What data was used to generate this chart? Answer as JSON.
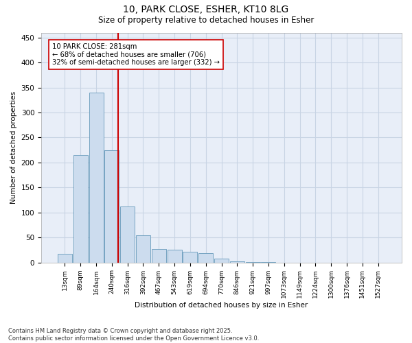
{
  "title_line1": "10, PARK CLOSE, ESHER, KT10 8LG",
  "title_line2": "Size of property relative to detached houses in Esher",
  "xlabel": "Distribution of detached houses by size in Esher",
  "ylabel": "Number of detached properties",
  "bar_labels": [
    "13sqm",
    "89sqm",
    "164sqm",
    "240sqm",
    "316sqm",
    "392sqm",
    "467sqm",
    "543sqm",
    "619sqm",
    "694sqm",
    "770sqm",
    "846sqm",
    "921sqm",
    "997sqm",
    "1073sqm",
    "1149sqm",
    "1224sqm",
    "1300sqm",
    "1376sqm",
    "1451sqm",
    "1527sqm"
  ],
  "bar_values": [
    17,
    215,
    340,
    225,
    112,
    55,
    27,
    25,
    22,
    18,
    7,
    2,
    1,
    1,
    0,
    0,
    0,
    0,
    0,
    0,
    0
  ],
  "bar_color": "#ccdcee",
  "bar_edge_color": "#6699bb",
  "vline_x": 3.42,
  "vline_color": "#cc0000",
  "annotation_text": "10 PARK CLOSE: 281sqm\n← 68% of detached houses are smaller (706)\n32% of semi-detached houses are larger (332) →",
  "annotation_box_color": "white",
  "annotation_box_edge_color": "#cc0000",
  "ylim": [
    0,
    460
  ],
  "yticks": [
    0,
    50,
    100,
    150,
    200,
    250,
    300,
    350,
    400,
    450
  ],
  "grid_color": "#c8d4e4",
  "background_color": "#e8eef8",
  "footer_line1": "Contains HM Land Registry data © Crown copyright and database right 2025.",
  "footer_line2": "Contains public sector information licensed under the Open Government Licence v3.0."
}
